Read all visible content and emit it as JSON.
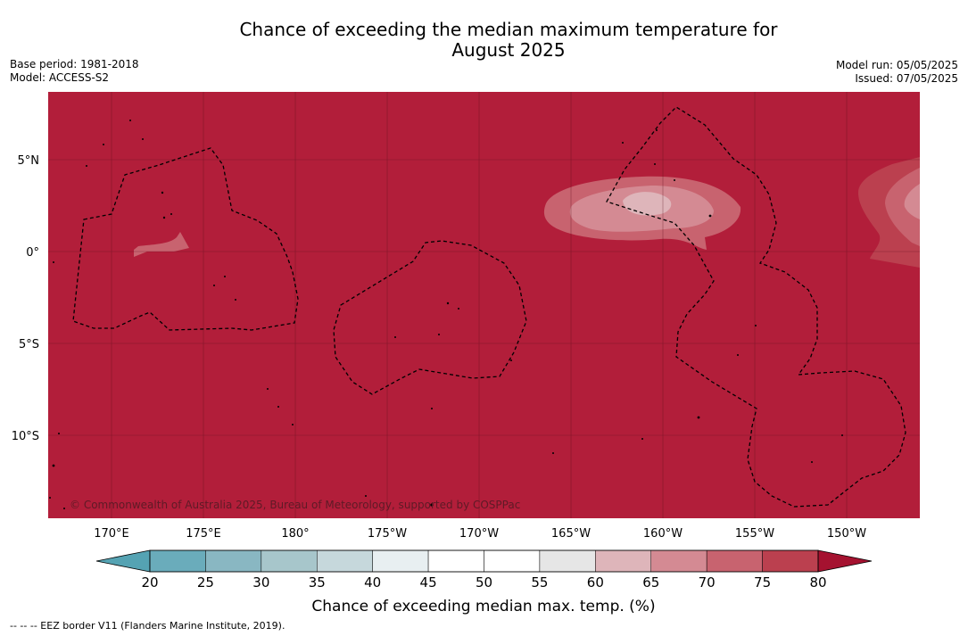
{
  "title_line1": "Chance of exceeding the median maximum temperature for",
  "title_line2": "August 2025",
  "meta_left": {
    "base_period": "Base period: 1981-2018",
    "model": "Model: ACCESS-S2"
  },
  "meta_right": {
    "model_run": "Model run: 05/05/2025",
    "issued": "Issued: 07/05/2025"
  },
  "map": {
    "background_color": "#b21e3a",
    "lat_labels": [
      "5°N",
      "0°",
      "5°S",
      "10°S"
    ],
    "lon_labels": [
      "170°E",
      "175°E",
      "180°",
      "175°W",
      "170°W",
      "165°W",
      "160°W",
      "155°W",
      "150°W"
    ],
    "copyright": "© Commonwealth of Australia 2025, Bureau of Meteorology, supported by COSPPac"
  },
  "colorbar": {
    "ticks": [
      "20",
      "25",
      "30",
      "35",
      "40",
      "45",
      "50",
      "55",
      "60",
      "65",
      "70",
      "75",
      "80"
    ],
    "colors": [
      "#6aacbb",
      "#89b7c2",
      "#a7c6cb",
      "#c6d8dc",
      "#e8eff1",
      "#ffffff",
      "#ffffff",
      "#e6e6e6",
      "#deb5ba",
      "#d48a93",
      "#c8636f",
      "#bb404f"
    ],
    "under_color": "#55a3b3",
    "over_color": "#a51230",
    "label": "Chance of exceeding median max. temp. (%)"
  },
  "footnote": "-- -- -- EEZ border V11 (Flanders Marine Institute, 2019)."
}
